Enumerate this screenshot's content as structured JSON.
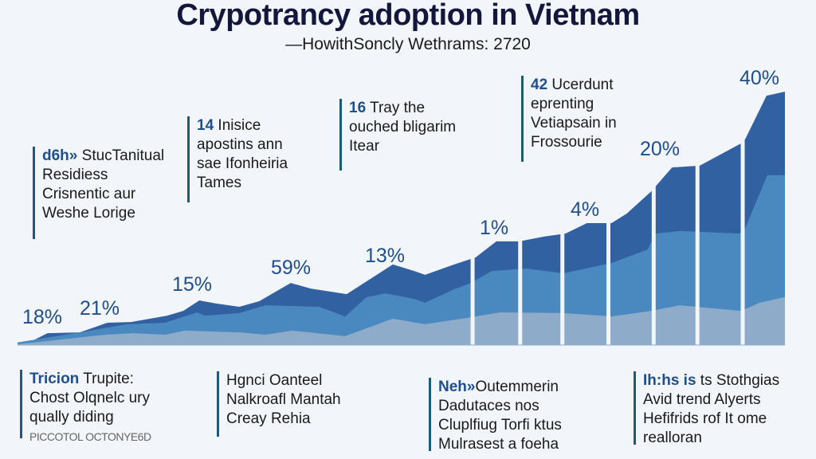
{
  "header": {
    "title": "Crypotrancy adoption in Vietnam",
    "subtitle": "—HowithSoncly Wethrams: 2720"
  },
  "annotations_top": [
    {
      "prefix": "d6h»",
      "lines": [
        "StucTanitual",
        "Residiess",
        "Crisnentic aur",
        "Weshe Lorige"
      ]
    },
    {
      "prefix": "14",
      "lines": [
        "Inisice",
        "apostins ann",
        "sae Ifonheiria",
        "Tames"
      ]
    },
    {
      "prefix": "16",
      "lines": [
        "Tray the",
        "ouched bligarim",
        "Itear"
      ]
    },
    {
      "prefix": "42",
      "lines": [
        "Ucerdunt",
        "eprenting",
        "Vetiapsain in",
        "Frossourie"
      ]
    }
  ],
  "annotations_bottom": [
    {
      "prefix": "Tricion",
      "lines": [
        "Trupite:",
        "Chost Olqnelc ury",
        "qually diding",
        "PICCOTOL OCTONYE6D"
      ]
    },
    {
      "prefix": "",
      "lines": [
        "Hgnci Oanteel",
        "Nalkroafl Mantah",
        "Creay Rehia"
      ]
    },
    {
      "prefix": "Neh»",
      "lines": [
        "Outemmerin",
        "Dadutaces nos",
        "Cluplfiug Torfi ktus",
        "Mulrasest a foeha"
      ]
    },
    {
      "prefix": "Ih:hs is",
      "lines": [
        "ts Stothgias",
        "Avid trend Alyerts",
        "Hefifrids rof It ome",
        "realloran"
      ]
    }
  ],
  "chart_data": {
    "type": "area",
    "stacked": true,
    "title": "Crypotrancy adoption in Vietnam",
    "xlabel": "",
    "ylabel": "",
    "xlim": [
      0,
      100
    ],
    "ylim": [
      0,
      100
    ],
    "grid": false,
    "axes_shown": false,
    "data_labels": [
      "18%",
      "21%",
      "15%",
      "59%",
      "13%",
      "1%",
      "4%",
      "20%",
      "40%"
    ],
    "separators_x": [
      59.3,
      65.5,
      71,
      77,
      82.9,
      88.6,
      94.5
    ],
    "series": [
      {
        "color": "#3161a1",
        "points": [
          [
            0,
            1
          ],
          [
            1.9,
            1.6
          ],
          [
            3.9,
            4.7
          ],
          [
            8.1,
            5
          ],
          [
            11.7,
            8.8
          ],
          [
            14.8,
            9.1
          ],
          [
            19.5,
            11.6
          ],
          [
            21.6,
            13.5
          ],
          [
            23.7,
            17.6
          ],
          [
            25.8,
            16.4
          ],
          [
            28.9,
            15.1
          ],
          [
            31.5,
            17.3
          ],
          [
            35.6,
            24.5
          ],
          [
            38.2,
            22.3
          ],
          [
            42.9,
            20.1
          ],
          [
            48.9,
            31.8
          ],
          [
            51.7,
            29.2
          ],
          [
            53.1,
            27.7
          ],
          [
            56.9,
            31.8
          ],
          [
            59.7,
            34.6
          ],
          [
            62.4,
            40.9
          ],
          [
            65.4,
            40.9
          ],
          [
            68.6,
            42.8
          ],
          [
            71.4,
            44
          ],
          [
            74.2,
            48.1
          ],
          [
            77.4,
            48.1
          ],
          [
            79.4,
            51.9
          ],
          [
            82.6,
            60.7
          ],
          [
            85.3,
            70.1
          ],
          [
            88.9,
            70.8
          ],
          [
            94.3,
            79.6
          ],
          [
            94.8,
            81.1
          ],
          [
            97.6,
            98.4
          ],
          [
            100,
            100
          ]
        ]
      },
      {
        "color": "#4a89c0",
        "points": [
          [
            0,
            1
          ],
          [
            8.1,
            5
          ],
          [
            14.3,
            8.2
          ],
          [
            19.2,
            8.8
          ],
          [
            23.4,
            12.9
          ],
          [
            24.4,
            11.6
          ],
          [
            28.9,
            12.6
          ],
          [
            32.3,
            15.7
          ],
          [
            39.3,
            15.1
          ],
          [
            42.7,
            11.3
          ],
          [
            45.5,
            18.9
          ],
          [
            47.9,
            20.4
          ],
          [
            51.7,
            18.2
          ],
          [
            53.1,
            16.7
          ],
          [
            56.9,
            22
          ],
          [
            59.1,
            24.5
          ],
          [
            61.8,
            29.2
          ],
          [
            66.3,
            30.2
          ],
          [
            71.1,
            28.3
          ],
          [
            77.4,
            32.4
          ],
          [
            82.1,
            37.7
          ],
          [
            83.2,
            44
          ],
          [
            86.3,
            45
          ],
          [
            94.1,
            44
          ],
          [
            94.8,
            45.9
          ],
          [
            97.7,
            67
          ],
          [
            100,
            67
          ]
        ]
      },
      {
        "color": "#8eacca",
        "points": [
          [
            0,
            0.3
          ],
          [
            11.5,
            4.1
          ],
          [
            15.1,
            4.7
          ],
          [
            19.2,
            4.1
          ],
          [
            21.9,
            5.7
          ],
          [
            28.9,
            5
          ],
          [
            32.3,
            4.1
          ],
          [
            35.8,
            5.7
          ],
          [
            42.7,
            3.5
          ],
          [
            48.9,
            10.4
          ],
          [
            53.1,
            8.2
          ],
          [
            59.2,
            11
          ],
          [
            62.8,
            12.9
          ],
          [
            71.1,
            12.6
          ],
          [
            77.4,
            11.3
          ],
          [
            82.6,
            13.5
          ],
          [
            86.3,
            15.7
          ],
          [
            94.3,
            13.5
          ],
          [
            96.7,
            16.7
          ],
          [
            100,
            18.9
          ]
        ]
      }
    ]
  }
}
